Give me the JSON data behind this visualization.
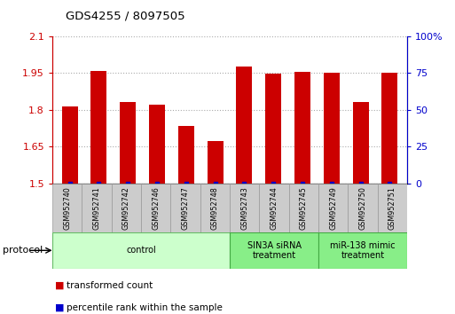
{
  "title": "GDS4255 / 8097505",
  "samples": [
    "GSM952740",
    "GSM952741",
    "GSM952742",
    "GSM952746",
    "GSM952747",
    "GSM952748",
    "GSM952743",
    "GSM952744",
    "GSM952745",
    "GSM952749",
    "GSM952750",
    "GSM952751"
  ],
  "transformed_count": [
    1.815,
    1.958,
    1.832,
    1.82,
    1.733,
    1.675,
    1.975,
    1.948,
    1.955,
    1.952,
    1.832,
    1.952
  ],
  "bar_color": "#cc0000",
  "percentile_color": "#0000cc",
  "ylim_left": [
    1.5,
    2.1
  ],
  "ylim_right": [
    0,
    100
  ],
  "yticks_left": [
    1.5,
    1.65,
    1.8,
    1.95,
    2.1
  ],
  "yticks_right": [
    0,
    25,
    50,
    75,
    100
  ],
  "ytick_labels_left": [
    "1.5",
    "1.65",
    "1.8",
    "1.95",
    "2.1"
  ],
  "ytick_labels_right": [
    "0",
    "25",
    "50",
    "75",
    "100%"
  ],
  "groups": [
    {
      "label": "control",
      "start": 0,
      "end": 6,
      "color": "#ccffcc",
      "edge_color": "#66bb66"
    },
    {
      "label": "SIN3A siRNA\ntreatment",
      "start": 6,
      "end": 9,
      "color": "#88ee88",
      "edge_color": "#44aa44"
    },
    {
      "label": "miR-138 mimic\ntreatment",
      "start": 9,
      "end": 12,
      "color": "#88ee88",
      "edge_color": "#44aa44"
    }
  ],
  "protocol_label": "protocol",
  "legend_items": [
    {
      "color": "#cc0000",
      "label": "transformed count"
    },
    {
      "color": "#0000cc",
      "label": "percentile rank within the sample"
    }
  ],
  "grid_color": "#aaaaaa",
  "left_tick_color": "#cc0000",
  "right_tick_color": "#0000cc",
  "bar_width": 0.55
}
